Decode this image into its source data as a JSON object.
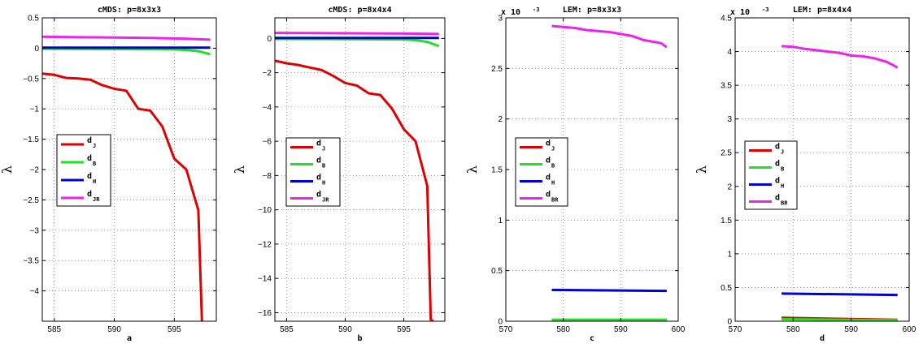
{
  "chart_data": [
    {
      "type": "line",
      "title": "cMDS: p=8x3x3",
      "xlabel": "a",
      "ylabel": "λ",
      "xlim": [
        584,
        598.5
      ],
      "ylim": [
        -4.5,
        0.5
      ],
      "xticks": [
        585,
        590,
        595
      ],
      "yticks": [
        0.5,
        0,
        -0.5,
        -1,
        -1.5,
        -2,
        -2.5,
        -3,
        -3.5,
        -4
      ],
      "ytick_labels": [
        "0.5",
        "0",
        "−0.5",
        "−1",
        "−1.5",
        "−2",
        "−2.5",
        "−3",
        "−3.5",
        "−4"
      ],
      "grid": true,
      "legend_position": "center-left",
      "series": [
        {
          "name": "d",
          "sub": "J",
          "color": "#e00000",
          "x": [
            584,
            585,
            586,
            587,
            588,
            589,
            590,
            591,
            592,
            593,
            594,
            595,
            596,
            597,
            597.3,
            597.5
          ],
          "values": [
            -0.42,
            -0.44,
            -0.49,
            -0.5,
            -0.52,
            -0.61,
            -0.67,
            -0.7,
            -1.0,
            -1.03,
            -1.29,
            -1.82,
            -2.0,
            -2.67,
            -4.5,
            -4.6
          ]
        },
        {
          "name": "d",
          "sub": "B",
          "color": "#22e022",
          "x": [
            584,
            590,
            595,
            596,
            597,
            598
          ],
          "values": [
            -0.01,
            -0.015,
            -0.02,
            -0.03,
            -0.05,
            -0.1
          ]
        },
        {
          "name": "d",
          "sub": "H",
          "color": "#0000dd",
          "x": [
            584,
            598
          ],
          "values": [
            0.01,
            0.01
          ]
        },
        {
          "name": "d",
          "sub": "JR",
          "color": "#ee22ee",
          "x": [
            584,
            587,
            590,
            593,
            596,
            598
          ],
          "values": [
            0.19,
            0.18,
            0.175,
            0.17,
            0.155,
            0.14
          ]
        }
      ]
    },
    {
      "type": "line",
      "title": "cMDS: p=8x4x4",
      "xlabel": "b",
      "ylabel": "λ",
      "xlim": [
        584,
        598.5
      ],
      "ylim": [
        -16.5,
        1.2
      ],
      "xticks": [
        585,
        590,
        595
      ],
      "yticks": [
        0,
        -2,
        -4,
        -6,
        -8,
        -10,
        -12,
        -14,
        -16
      ],
      "ytick_labels": [
        "0",
        "−2",
        "−4",
        "−6",
        "−8",
        "−10",
        "−12",
        "−14",
        "−16"
      ],
      "grid": true,
      "legend_position": "center-left",
      "series": [
        {
          "name": "d",
          "sub": "J",
          "color": "#e00000",
          "x": [
            584,
            585,
            586,
            587,
            588,
            589,
            590,
            591,
            592,
            593,
            594,
            595,
            596,
            597,
            597.3,
            597.5
          ],
          "values": [
            -1.3,
            -1.45,
            -1.55,
            -1.7,
            -1.85,
            -2.2,
            -2.6,
            -2.75,
            -3.2,
            -3.3,
            -4.1,
            -5.3,
            -6.0,
            -8.6,
            -16.4,
            -16.5
          ]
        },
        {
          "name": "d",
          "sub": "B",
          "color": "#22e022",
          "x": [
            584,
            590,
            595,
            596,
            597,
            598
          ],
          "values": [
            -0.03,
            -0.04,
            -0.06,
            -0.1,
            -0.2,
            -0.45
          ]
        },
        {
          "name": "d",
          "sub": "H",
          "color": "#0000dd",
          "x": [
            584,
            598
          ],
          "values": [
            0.03,
            0.03
          ]
        },
        {
          "name": "d",
          "sub": "JR",
          "color": "#ee22ee",
          "x": [
            584,
            590,
            595,
            598
          ],
          "values": [
            0.32,
            0.3,
            0.28,
            0.26
          ]
        }
      ]
    },
    {
      "type": "line",
      "title": "LEM: p=8x3x3",
      "xlabel": "c",
      "ylabel": "λ",
      "multiplier": "x 10",
      "multiplier_exp": "-3",
      "xlim": [
        570,
        600
      ],
      "ylim": [
        0,
        3
      ],
      "xticks": [
        570,
        580,
        590,
        600
      ],
      "yticks": [
        0,
        0.5,
        1,
        1.5,
        2,
        2.5,
        3
      ],
      "ytick_labels": [
        "0",
        "0.5",
        "1",
        "1.5",
        "2",
        "2.5",
        "3"
      ],
      "grid": true,
      "legend_position": "center-left",
      "series": [
        {
          "name": "d",
          "sub": "J",
          "color": "#e00000",
          "x": [
            578,
            598
          ],
          "values": [
            0.01,
            0.01
          ]
        },
        {
          "name": "d",
          "sub": "B",
          "color": "#22e022",
          "x": [
            578,
            598
          ],
          "values": [
            0.015,
            0.015
          ]
        },
        {
          "name": "d",
          "sub": "H",
          "color": "#0000dd",
          "x": [
            578,
            598
          ],
          "values": [
            0.31,
            0.3
          ]
        },
        {
          "name": "d",
          "sub": "BR",
          "color": "#ee22ee",
          "x": [
            578,
            580,
            582,
            584,
            586,
            588,
            590,
            592,
            594,
            596,
            597,
            598
          ],
          "values": [
            2.92,
            2.91,
            2.9,
            2.88,
            2.87,
            2.86,
            2.84,
            2.82,
            2.78,
            2.76,
            2.75,
            2.71
          ]
        }
      ]
    },
    {
      "type": "line",
      "title": "LEM: p=8x4x4",
      "xlabel": "d",
      "ylabel": "λ",
      "multiplier": "x 10",
      "multiplier_exp": "-3",
      "xlim": [
        570,
        600
      ],
      "ylim": [
        0,
        4.5
      ],
      "xticks": [
        570,
        580,
        590,
        600
      ],
      "yticks": [
        0,
        0.5,
        1,
        1.5,
        2,
        2.5,
        3,
        3.5,
        4,
        4.5
      ],
      "ytick_labels": [
        "0",
        "0.5",
        "1",
        "1.5",
        "2",
        "2.5",
        "3",
        "3.5",
        "4",
        "4.5"
      ],
      "grid": true,
      "legend_position": "center-left",
      "series": [
        {
          "name": "d",
          "sub": "J",
          "color": "#e00000",
          "x": [
            578,
            598
          ],
          "values": [
            0.05,
            0.02
          ]
        },
        {
          "name": "d",
          "sub": "B",
          "color": "#22e022",
          "x": [
            578,
            598
          ],
          "values": [
            0.03,
            0.015
          ]
        },
        {
          "name": "d",
          "sub": "H",
          "color": "#0000dd",
          "x": [
            578,
            598
          ],
          "values": [
            0.41,
            0.39
          ]
        },
        {
          "name": "d",
          "sub": "BR",
          "color": "#ee22ee",
          "x": [
            578,
            580,
            582,
            584,
            586,
            588,
            590,
            592,
            594,
            596,
            597,
            598
          ],
          "values": [
            4.08,
            4.07,
            4.04,
            4.02,
            4.0,
            3.98,
            3.94,
            3.93,
            3.9,
            3.85,
            3.81,
            3.76
          ]
        }
      ]
    }
  ]
}
